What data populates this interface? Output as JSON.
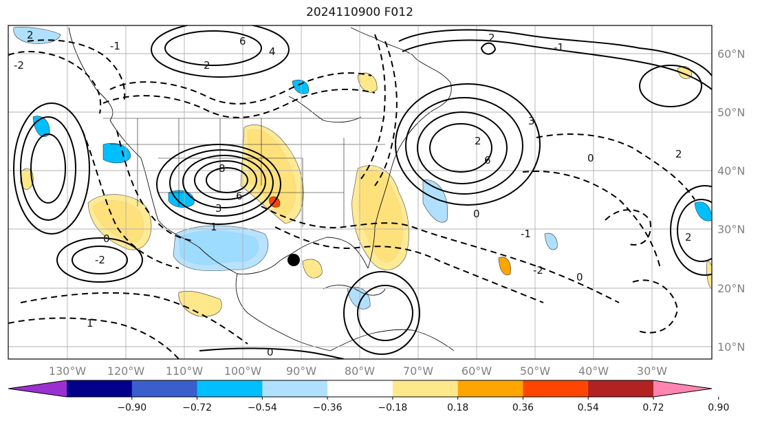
{
  "map": {
    "title": "2024110900 F012",
    "lat_labels": [
      "60°N",
      "50°N",
      "40°N",
      "30°N",
      "20°N",
      "10°N"
    ],
    "lon_labels": [
      "130°W",
      "120°W",
      "110°W",
      "100°W",
      "90°W",
      "80°W",
      "70°W",
      "60°W",
      "50°W",
      "40°W",
      "30°W"
    ],
    "contour_labels": [
      "6",
      "4",
      "2",
      "2",
      "-1",
      "-2",
      "8",
      "6",
      "3",
      "1",
      "0",
      "-2",
      "6",
      "2",
      "0",
      "-2",
      "2",
      "-1",
      "0",
      "2",
      "-1",
      "1",
      "0",
      "3",
      "0",
      "2"
    ],
    "colorbar": {
      "tick_labels": [
        "−0.90",
        "−0.72",
        "−0.54",
        "−0.36",
        "−0.18",
        "0.18",
        "0.36",
        "0.54",
        "0.72",
        "0.90"
      ],
      "colors": [
        "#9b30d0",
        "#00008b",
        "#3a5fcd",
        "#00bfff",
        "#b0e0ff",
        "#ffffff",
        "#ffe88a",
        "#ffa500",
        "#ff4500",
        "#b22222",
        "#ff85b0"
      ]
    },
    "marker": "storm-center"
  }
}
